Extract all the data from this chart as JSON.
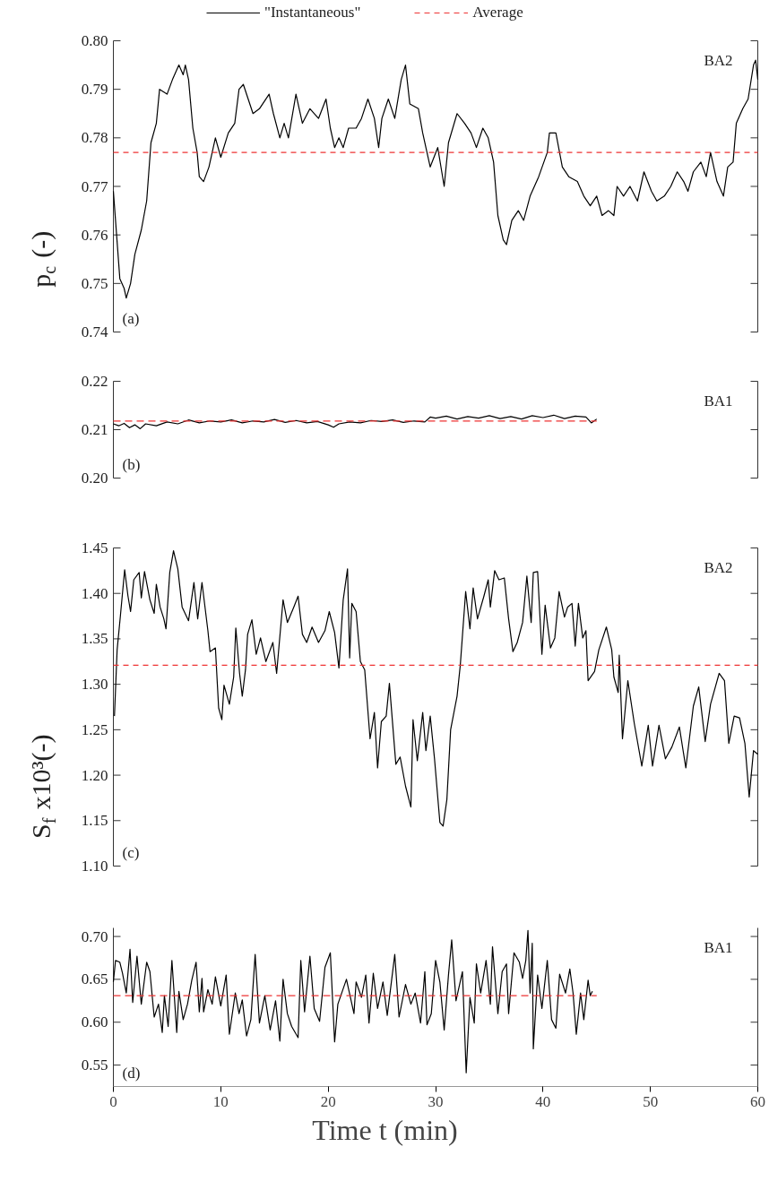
{
  "chart_data": [
    {
      "type": "line",
      "ylabel": "p$_{c}$ (-)",
      "xlim": [
        0,
        60
      ],
      "ylim": [
        0.74,
        0.8
      ],
      "yticks": [
        0.74,
        0.75,
        0.76,
        0.77,
        0.78,
        0.79,
        {
          "value": 0.8,
          "label": "0.80"
        }
      ],
      "tick_labels": "y",
      "legend": "top",
      "annotations": [
        "BA2",
        "(a)"
      ],
      "series": [
        {
          "name": "\"Instantaneous\"",
          "color": "#000000",
          "line_style": "solid",
          "x": [
            0,
            0.3,
            0.6,
            1.0,
            1.2,
            1.6,
            2.0,
            2.6,
            3.1,
            3.5,
            4.0,
            4.3,
            5.0,
            5.5,
            6.1,
            6.5,
            6.7,
            7.0,
            7.4,
            7.8,
            8.0,
            8.4,
            8.9,
            9.5,
            10.0,
            10.7,
            11.3,
            11.7,
            12.1,
            13.0,
            13.6,
            14.5,
            14.9,
            15.5,
            15.9,
            16.3,
            17.0,
            17.6,
            18.3,
            19.1,
            19.8,
            20.2,
            20.6,
            21.0,
            21.4,
            21.9,
            22.6,
            23.1,
            23.7,
            24.3,
            24.7,
            25.0,
            25.6,
            26.2,
            26.8,
            27.2,
            27.6,
            28.4,
            28.8,
            29.2,
            29.5,
            30.2,
            30.8,
            31.2,
            32.0,
            32.7,
            33.3,
            33.8,
            34.4,
            34.9,
            35.4,
            35.8,
            36.3,
            36.6,
            37.1,
            37.7,
            38.2,
            38.8,
            39.6,
            40.4,
            40.6,
            41.2,
            41.8,
            42.4,
            43.2,
            43.8,
            44.4,
            45.0,
            45.5,
            46.1,
            46.6,
            46.9,
            47.5,
            48.1,
            48.8,
            49.4,
            50.1,
            50.6,
            51.3,
            51.9,
            52.5,
            53.1,
            53.5,
            54.0,
            54.7,
            55.2,
            55.6,
            56.2,
            56.8,
            57.2,
            57.7,
            58.0,
            58.6,
            59.1,
            59.6,
            59.8,
            60.0
          ],
          "values": [
            0.769,
            0.76,
            0.751,
            0.749,
            0.747,
            0.75,
            0.756,
            0.761,
            0.767,
            0.779,
            0.783,
            0.79,
            0.789,
            0.792,
            0.795,
            0.793,
            0.795,
            0.792,
            0.782,
            0.777,
            0.772,
            0.771,
            0.774,
            0.78,
            0.776,
            0.781,
            0.783,
            0.79,
            0.791,
            0.785,
            0.786,
            0.789,
            0.785,
            0.78,
            0.783,
            0.78,
            0.789,
            0.783,
            0.786,
            0.784,
            0.788,
            0.782,
            0.778,
            0.78,
            0.778,
            0.782,
            0.782,
            0.784,
            0.788,
            0.784,
            0.778,
            0.784,
            0.788,
            0.784,
            0.792,
            0.795,
            0.787,
            0.786,
            0.781,
            0.777,
            0.774,
            0.778,
            0.77,
            0.779,
            0.785,
            0.783,
            0.781,
            0.778,
            0.782,
            0.78,
            0.775,
            0.764,
            0.759,
            0.758,
            0.763,
            0.765,
            0.763,
            0.768,
            0.772,
            0.777,
            0.781,
            0.781,
            0.774,
            0.772,
            0.771,
            0.768,
            0.766,
            0.768,
            0.764,
            0.765,
            0.764,
            0.77,
            0.768,
            0.77,
            0.767,
            0.773,
            0.769,
            0.767,
            0.768,
            0.77,
            0.773,
            0.771,
            0.769,
            0.773,
            0.775,
            0.772,
            0.777,
            0.771,
            0.768,
            0.774,
            0.775,
            0.783,
            0.786,
            0.788,
            0.795,
            0.796,
            0.792
          ]
        },
        {
          "name": "Average",
          "color": "#ee3333",
          "line_style": "dashed",
          "x": [
            0,
            60
          ],
          "values": [
            0.777,
            0.777
          ]
        }
      ]
    },
    {
      "type": "line",
      "xlim": [
        0,
        60
      ],
      "ylim": [
        0.2,
        0.22
      ],
      "yticks": [
        {
          "value": 0.2,
          "label": "0.20"
        },
        0.21,
        0.22
      ],
      "tick_labels": "y",
      "annotations": [
        "BA1",
        "(b)"
      ],
      "series": [
        {
          "color": "#000000",
          "line_style": "solid",
          "x": [
            0,
            0.5,
            1,
            1.5,
            2,
            2.5,
            3,
            4,
            5,
            6,
            7,
            8,
            9,
            10,
            11,
            12,
            13,
            14,
            15,
            16,
            17,
            18,
            19,
            20,
            20.5,
            21,
            22,
            23,
            24,
            25,
            26,
            27,
            28,
            29,
            29.5,
            30,
            31,
            32,
            33,
            34,
            35,
            36,
            37,
            38,
            39,
            40,
            41,
            42,
            43,
            44,
            44.5,
            45
          ],
          "values": [
            0.2112,
            0.2108,
            0.2113,
            0.2104,
            0.211,
            0.2102,
            0.2112,
            0.2108,
            0.2116,
            0.2112,
            0.212,
            0.2114,
            0.2118,
            0.2116,
            0.212,
            0.2114,
            0.2118,
            0.2116,
            0.2121,
            0.2115,
            0.2119,
            0.2114,
            0.2117,
            0.211,
            0.2105,
            0.2112,
            0.2116,
            0.2114,
            0.2119,
            0.2117,
            0.212,
            0.2115,
            0.2118,
            0.2116,
            0.2126,
            0.2124,
            0.2128,
            0.2122,
            0.2127,
            0.2124,
            0.2129,
            0.2123,
            0.2127,
            0.2122,
            0.2129,
            0.2125,
            0.213,
            0.2123,
            0.2128,
            0.2126,
            0.2114,
            0.2122
          ]
        },
        {
          "color": "#ee3333",
          "line_style": "dashed",
          "x": [
            0,
            45
          ],
          "values": [
            0.2118,
            0.2118
          ]
        }
      ]
    },
    {
      "type": "line",
      "ylabel": "S$_{f}$ x10³(-)",
      "xlim": [
        0,
        60
      ],
      "ylim": [
        1.1,
        1.45
      ],
      "yticks": [
        {
          "value": 1.1,
          "label": "1.10"
        },
        1.15,
        {
          "value": 1.2,
          "label": "1.20"
        },
        1.25,
        {
          "value": 1.3,
          "label": "1.30"
        },
        1.35,
        {
          "value": 1.4,
          "label": "1.40"
        },
        1.45
      ],
      "tick_labels": "y",
      "annotations": [
        "BA2",
        "(c)"
      ],
      "series": [
        {
          "color": "#000000",
          "line_style": "solid",
          "x": [
            0.1,
            0.35,
            0.66,
            1.05,
            1.36,
            1.6,
            1.9,
            2.4,
            2.6,
            2.9,
            3.4,
            3.8,
            4.0,
            4.35,
            4.7,
            4.9,
            5.25,
            5.6,
            6.0,
            6.4,
            7.0,
            7.5,
            7.85,
            8.25,
            8.8,
            9.0,
            9.5,
            9.8,
            10.1,
            10.3,
            10.8,
            11.2,
            11.4,
            11.75,
            12.0,
            12.3,
            12.5,
            12.9,
            13.3,
            13.7,
            14.2,
            14.85,
            15.2,
            15.8,
            16.2,
            16.8,
            17.2,
            17.6,
            18.0,
            18.5,
            19.1,
            19.7,
            20.1,
            20.6,
            21.0,
            21.4,
            21.8,
            22.0,
            22.2,
            22.6,
            23.0,
            23.4,
            23.9,
            24.3,
            24.6,
            24.95,
            25.4,
            25.7,
            26.3,
            26.7,
            27.2,
            27.7,
            27.9,
            28.3,
            28.8,
            29.1,
            29.5,
            29.9,
            30.4,
            30.7,
            31.05,
            31.4,
            32.0,
            32.3,
            32.8,
            33.2,
            33.5,
            33.9,
            34.5,
            34.9,
            35.1,
            35.5,
            35.9,
            36.4,
            36.8,
            37.2,
            37.6,
            38.1,
            38.5,
            38.9,
            39.1,
            39.5,
            39.9,
            40.2,
            40.7,
            41.1,
            41.5,
            42.0,
            42.3,
            42.7,
            43.0,
            43.3,
            43.7,
            44.0,
            44.2,
            44.8,
            45.2,
            45.9,
            46.4,
            46.6,
            47.0,
            47.1,
            47.4,
            47.9,
            48.5,
            49.2,
            49.8,
            50.2,
            50.8,
            51.4,
            52.0,
            52.7,
            53.3,
            54.0,
            54.5,
            55.1,
            55.6,
            56.4,
            56.9,
            57.3,
            57.8,
            58.3,
            58.8,
            59.2,
            59.6,
            60.0
          ],
          "values": [
            1.265,
            1.338,
            1.376,
            1.426,
            1.397,
            1.38,
            1.415,
            1.423,
            1.395,
            1.424,
            1.393,
            1.378,
            1.41,
            1.385,
            1.372,
            1.361,
            1.423,
            1.447,
            1.427,
            1.385,
            1.37,
            1.412,
            1.372,
            1.412,
            1.359,
            1.336,
            1.34,
            1.274,
            1.261,
            1.299,
            1.278,
            1.308,
            1.362,
            1.312,
            1.287,
            1.316,
            1.355,
            1.371,
            1.333,
            1.351,
            1.325,
            1.346,
            1.312,
            1.393,
            1.368,
            1.385,
            1.397,
            1.355,
            1.346,
            1.363,
            1.346,
            1.359,
            1.38,
            1.357,
            1.318,
            1.393,
            1.427,
            1.329,
            1.389,
            1.38,
            1.325,
            1.316,
            1.24,
            1.269,
            1.208,
            1.259,
            1.265,
            1.301,
            1.212,
            1.22,
            1.188,
            1.165,
            1.261,
            1.216,
            1.269,
            1.227,
            1.265,
            1.218,
            1.148,
            1.144,
            1.173,
            1.25,
            1.287,
            1.321,
            1.402,
            1.361,
            1.406,
            1.372,
            1.397,
            1.415,
            1.385,
            1.425,
            1.415,
            1.417,
            1.372,
            1.336,
            1.346,
            1.368,
            1.419,
            1.368,
            1.423,
            1.424,
            1.333,
            1.387,
            1.34,
            1.351,
            1.402,
            1.374,
            1.385,
            1.389,
            1.342,
            1.389,
            1.351,
            1.359,
            1.304,
            1.314,
            1.338,
            1.363,
            1.338,
            1.308,
            1.291,
            1.332,
            1.24,
            1.304,
            1.257,
            1.21,
            1.255,
            1.21,
            1.255,
            1.218,
            1.231,
            1.253,
            1.208,
            1.276,
            1.297,
            1.237,
            1.278,
            1.312,
            1.304,
            1.235,
            1.265,
            1.263,
            1.235,
            1.176,
            1.227,
            1.223
          ]
        },
        {
          "color": "#ee3333",
          "line_style": "dashed",
          "x": [
            0,
            60
          ],
          "values": [
            1.321,
            1.321
          ]
        }
      ]
    },
    {
      "type": "line",
      "xlabel": "Time t (min)",
      "xlim": [
        0,
        60
      ],
      "xticks": [
        0,
        10,
        20,
        30,
        40,
        50,
        60
      ],
      "ylim": [
        0.525,
        0.71
      ],
      "yticks": [
        0.55,
        {
          "value": 0.6,
          "label": "0.60"
        },
        0.65,
        {
          "value": 0.7,
          "label": "0.70"
        }
      ],
      "annotations": [
        "BA1",
        "(d)"
      ],
      "series": [
        {
          "color": "#000000",
          "line_style": "solid",
          "x": [
            0,
            0.2,
            0.6,
            0.85,
            1.2,
            1.55,
            1.8,
            2.2,
            2.6,
            3.1,
            3.4,
            3.8,
            4.2,
            4.55,
            4.75,
            5.1,
            5.45,
            5.9,
            6.1,
            6.5,
            6.9,
            7.3,
            7.7,
            8.0,
            8.25,
            8.4,
            8.8,
            9.2,
            9.5,
            10.0,
            10.5,
            10.8,
            11.35,
            11.7,
            12.0,
            12.4,
            12.8,
            13.2,
            13.6,
            14.1,
            14.6,
            15.1,
            15.5,
            15.8,
            16.2,
            16.6,
            17.2,
            17.45,
            17.8,
            18.3,
            18.7,
            19.2,
            19.7,
            20.2,
            20.6,
            20.9,
            21.7,
            22.4,
            22.6,
            23.1,
            23.5,
            23.8,
            24.2,
            24.6,
            25.1,
            25.5,
            26.2,
            26.6,
            27.2,
            27.7,
            28.1,
            28.6,
            29.0,
            29.2,
            29.6,
            30.0,
            30.4,
            30.8,
            31.2,
            31.5,
            31.9,
            32.5,
            32.85,
            33.2,
            33.6,
            33.8,
            34.2,
            34.7,
            35.1,
            35.3,
            35.8,
            36.2,
            36.6,
            36.8,
            37.3,
            37.8,
            38.1,
            38.4,
            38.6,
            38.8,
            39.0,
            39.1,
            39.5,
            39.9,
            40.4,
            40.8,
            41.2,
            41.55,
            42.1,
            42.5,
            42.8,
            43.1,
            43.5,
            43.8,
            44.2,
            44.4,
            44.6
          ],
          "values": [
            0.647,
            0.672,
            0.67,
            0.657,
            0.634,
            0.685,
            0.623,
            0.677,
            0.621,
            0.67,
            0.659,
            0.606,
            0.621,
            0.588,
            0.631,
            0.595,
            0.672,
            0.588,
            0.636,
            0.603,
            0.621,
            0.649,
            0.67,
            0.612,
            0.651,
            0.612,
            0.638,
            0.621,
            0.653,
            0.619,
            0.655,
            0.586,
            0.634,
            0.61,
            0.626,
            0.584,
            0.603,
            0.679,
            0.599,
            0.631,
            0.591,
            0.625,
            0.578,
            0.65,
            0.61,
            0.595,
            0.582,
            0.672,
            0.612,
            0.677,
            0.616,
            0.601,
            0.664,
            0.681,
            0.577,
            0.621,
            0.65,
            0.61,
            0.647,
            0.629,
            0.655,
            0.599,
            0.657,
            0.616,
            0.647,
            0.608,
            0.679,
            0.606,
            0.644,
            0.621,
            0.634,
            0.599,
            0.659,
            0.597,
            0.61,
            0.672,
            0.647,
            0.591,
            0.655,
            0.696,
            0.625,
            0.659,
            0.541,
            0.629,
            0.599,
            0.668,
            0.634,
            0.672,
            0.621,
            0.688,
            0.61,
            0.659,
            0.668,
            0.61,
            0.681,
            0.67,
            0.651,
            0.672,
            0.707,
            0.634,
            0.692,
            0.569,
            0.655,
            0.616,
            0.672,
            0.603,
            0.593,
            0.656,
            0.634,
            0.662,
            0.634,
            0.586,
            0.634,
            0.603,
            0.649,
            0.631,
            0.636
          ]
        },
        {
          "color": "#ee3333",
          "line_style": "dashed",
          "x": [
            0,
            45
          ],
          "values": [
            0.631,
            0.631
          ]
        }
      ]
    }
  ]
}
